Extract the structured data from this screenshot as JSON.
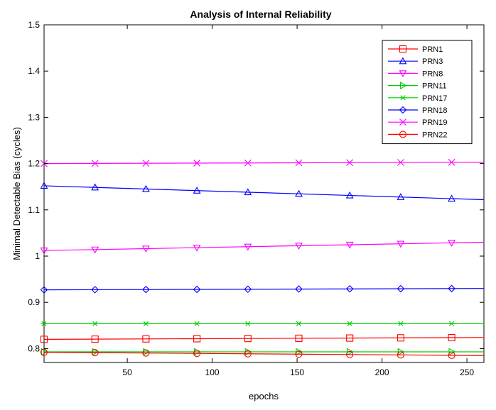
{
  "chart_data": {
    "type": "line",
    "title": "Analysis of Internal Reliability",
    "xlabel": "epochs",
    "ylabel": "Minimal Detectable Bias (cycles)",
    "xlim": [
      1,
      260
    ],
    "ylim": [
      0.77,
      1.5
    ],
    "xticks": [
      50,
      100,
      150,
      200,
      250
    ],
    "yticks": [
      0.8,
      0.9,
      1,
      1.1,
      1.2,
      1.3,
      1.4,
      1.5
    ],
    "grid": false,
    "legend_position": "top-right",
    "marker_x": [
      1,
      31,
      61,
      91,
      121,
      151,
      181,
      211,
      241
    ],
    "series": [
      {
        "name": "PRN1",
        "color": "#ff0000",
        "marker": "square",
        "x": [
          1,
          260
        ],
        "y": [
          0.82,
          0.824
        ]
      },
      {
        "name": "PRN3",
        "color": "#0000ff",
        "marker": "triangle-up",
        "x": [
          1,
          260
        ],
        "y": [
          1.152,
          1.122
        ]
      },
      {
        "name": "PRN8",
        "color": "#ff00ff",
        "marker": "triangle-down",
        "x": [
          1,
          260
        ],
        "y": [
          1.012,
          1.03
        ]
      },
      {
        "name": "PRN11",
        "color": "#00cc00",
        "marker": "triangle-right",
        "x": [
          1,
          260
        ],
        "y": [
          0.793,
          0.793
        ]
      },
      {
        "name": "PRN17",
        "color": "#00cc00",
        "marker": "asterisk",
        "x": [
          1,
          260
        ],
        "y": [
          0.854,
          0.854
        ]
      },
      {
        "name": "PRN18",
        "color": "#0000ff",
        "marker": "diamond",
        "x": [
          1,
          260
        ],
        "y": [
          0.927,
          0.93
        ]
      },
      {
        "name": "PRN19",
        "color": "#ff00ff",
        "marker": "x",
        "x": [
          1,
          260
        ],
        "y": [
          1.2,
          1.203
        ]
      },
      {
        "name": "PRN22",
        "color": "#ff0000",
        "marker": "circle",
        "x": [
          1,
          260
        ],
        "y": [
          0.792,
          0.785
        ]
      }
    ]
  }
}
